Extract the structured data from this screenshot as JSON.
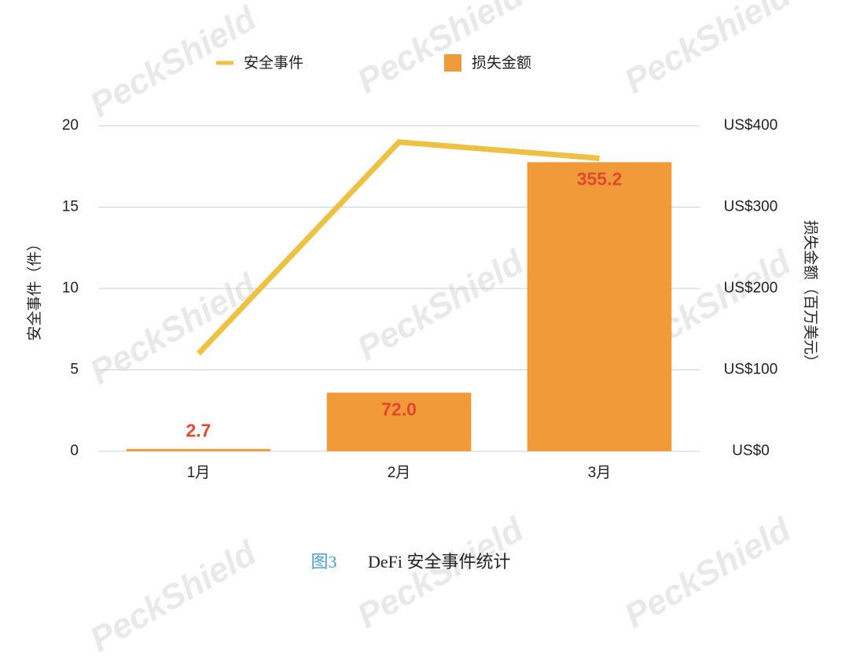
{
  "chart_data": {
    "type": "combo",
    "watermark": "PeckShield",
    "categories": [
      "1月",
      "2月",
      "3月"
    ],
    "series": [
      {
        "name": "损失金额",
        "type": "bar",
        "axis": "y2",
        "color": "#f09a3a",
        "values": [
          2.7,
          72.0,
          355.2
        ],
        "value_labels": [
          "2.7",
          "72.0",
          "355.2"
        ],
        "label_color": "#e4472f"
      },
      {
        "name": "安全事件",
        "type": "line",
        "axis": "y",
        "color": "#efc143",
        "values": [
          6,
          19,
          18
        ]
      }
    ],
    "ylabel": "安全事件（件）",
    "y2label": "损失金额（百万美元）",
    "ylim": [
      0,
      20
    ],
    "yticks": [
      0,
      5,
      10,
      15,
      20
    ],
    "y2lim": [
      0,
      400
    ],
    "y2ticks": [
      {
        "value": 0,
        "label": "US$0"
      },
      {
        "value": 100,
        "label": "US$100"
      },
      {
        "value": 200,
        "label": "US$200"
      },
      {
        "value": 300,
        "label": "US$300"
      },
      {
        "value": 400,
        "label": "US$400"
      }
    ],
    "grid": true,
    "legend": "top",
    "caption": {
      "figure": "图3",
      "text": "DeFi 安全事件统计"
    }
  }
}
